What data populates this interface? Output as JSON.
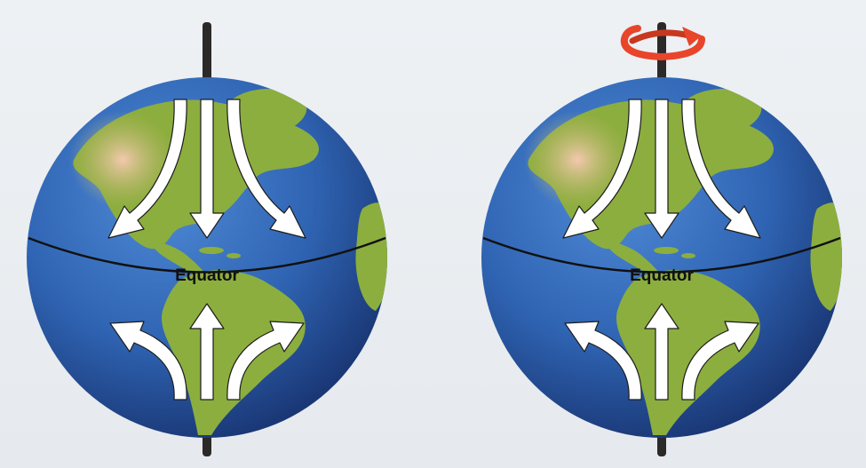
{
  "globes": [
    {
      "id": "non-rotating",
      "equator_label": "Equator",
      "rotating": false
    },
    {
      "id": "rotating",
      "equator_label": "Equator",
      "rotating": true
    }
  ],
  "colors": {
    "ocean": "#2f64b3",
    "ocean_dark": "#1e3f86",
    "land": "#8cae3e",
    "land_desert": "#e6b496",
    "axis": "#2b2a28",
    "arrow_fill": "#ffffff",
    "arrow_stroke": "#1c1c1c",
    "rotation_arrow": "#e8452a"
  }
}
